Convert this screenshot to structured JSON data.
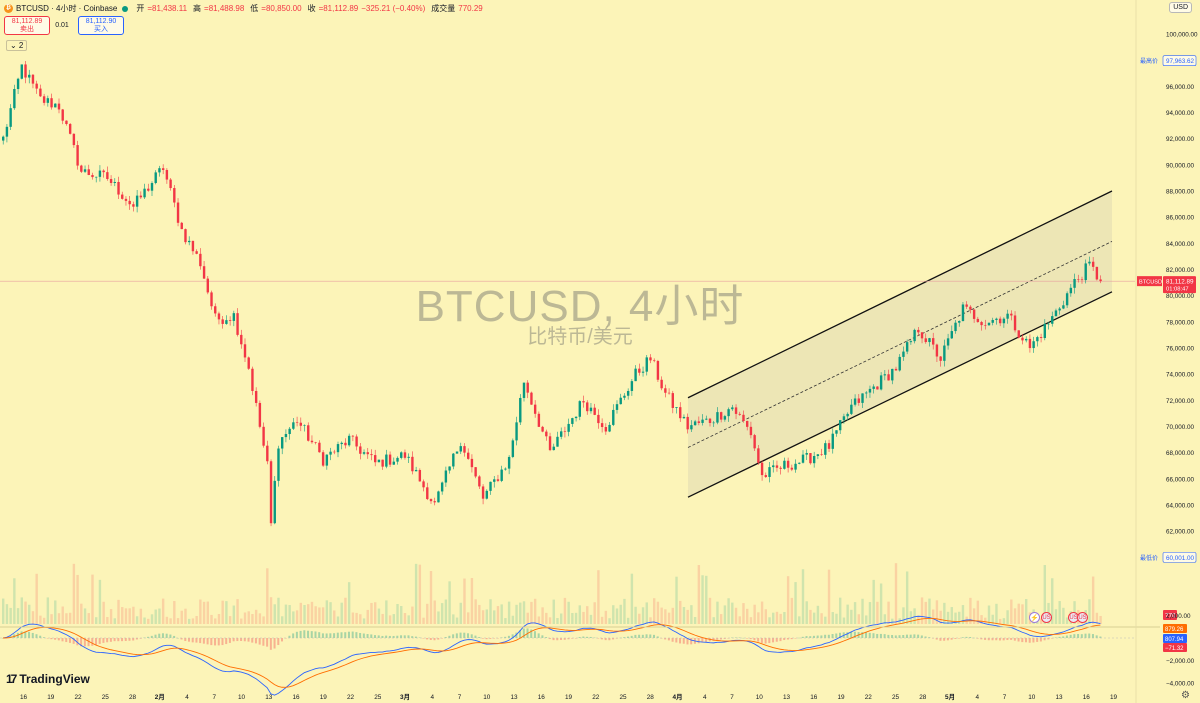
{
  "header": {
    "symbol": "BTCUSD · 4小时 · Coinbase",
    "coin_glyph": "₿",
    "ohlc": [
      {
        "label": "开",
        "value": "=81,438.11"
      },
      {
        "label": "高",
        "value": "=81,488.98"
      },
      {
        "label": "低",
        "value": "=80,850.00"
      },
      {
        "label": "收",
        "value": "=81,112.89"
      }
    ],
    "change": "−325.21 (−0.40%)",
    "volume_label": "成交量",
    "volume_value": "770.29"
  },
  "trade": {
    "sell_price": "81,112.89",
    "sell_label": "卖出",
    "spread": "0.01",
    "buy_price": "81,112.90",
    "buy_label": "买入"
  },
  "collapse_label": "⌄ 2",
  "currency": "USD",
  "watermark": {
    "title": "BTCUSD, 4小时",
    "subtitle": "比特币/美元"
  },
  "logo": {
    "mark": "17",
    "text": "TradingView"
  },
  "events": {
    "bolt": "⚡",
    "flag": "US"
  },
  "gear_icon": "⚙",
  "colors": {
    "up": "#089981",
    "down": "#f23645",
    "background": "#fcf4b8"
  },
  "chart_data": {
    "type": "candlestick",
    "symbol": "BTCUSD",
    "interval": "4小时",
    "price_axis": {
      "ticks": [
        "100,000.00",
        "98,000.00",
        "96,000.00",
        "94,000.00",
        "92,000.00",
        "90,000.00",
        "88,000.00",
        "86,000.00",
        "84,000.00",
        "82,000.00",
        "80,000.00",
        "78,000.00",
        "76,000.00",
        "74,000.00",
        "72,000.00",
        "70,000.00",
        "68,000.00",
        "66,000.00",
        "64,000.00",
        "62,000.00",
        "60,000.00"
      ],
      "range": [
        60000,
        100000
      ]
    },
    "price_labels": [
      {
        "label": "最高价",
        "value": "97,963.62",
        "price": 97963.62
      },
      {
        "label": "最低价",
        "value": "60,001.00",
        "price": 60001.0
      }
    ],
    "current_price": {
      "symbol": "BTCUSD",
      "value": "81,112.89",
      "countdown": "01:08:47",
      "price": 81112.89
    },
    "volume_badge": "770",
    "macd": {
      "ticks": [
        "2,000.00",
        "−2,000.00",
        "−4,000.00"
      ],
      "range": [
        -4000,
        2000
      ],
      "badges": [
        "879.26",
        "807.94",
        "−71.32"
      ]
    },
    "x_axis": {
      "labels": [
        "16",
        "19",
        "22",
        "25",
        "28",
        "2月",
        "4",
        "7",
        "10",
        "13",
        "16",
        "19",
        "22",
        "25",
        "3月",
        "4",
        "7",
        "10",
        "13",
        "16",
        "19",
        "22",
        "25",
        "28",
        "4月",
        "4",
        "7",
        "10",
        "13",
        "16",
        "19",
        "22",
        "25",
        "28",
        "5月",
        "4",
        "7",
        "10",
        "13",
        "16",
        "19"
      ],
      "bold": [
        "2月",
        "3月",
        "4月",
        "5月"
      ]
    },
    "path_waypoints": [
      {
        "t": 0,
        "p": 92000
      },
      {
        "t": 5,
        "p": 97500
      },
      {
        "t": 10,
        "p": 95000
      },
      {
        "t": 15,
        "p": 94500
      },
      {
        "t": 21,
        "p": 89500
      },
      {
        "t": 28,
        "p": 89000
      },
      {
        "t": 35,
        "p": 86800
      },
      {
        "t": 43,
        "p": 89800
      },
      {
        "t": 48,
        "p": 85000
      },
      {
        "t": 53,
        "p": 82500
      },
      {
        "t": 57,
        "p": 78200
      },
      {
        "t": 62,
        "p": 78500
      },
      {
        "t": 66,
        "p": 74500
      },
      {
        "t": 71,
        "p": 67000
      },
      {
        "t": 72,
        "p": 62500
      },
      {
        "t": 74,
        "p": 68800
      },
      {
        "t": 79,
        "p": 70500
      },
      {
        "t": 86,
        "p": 67500
      },
      {
        "t": 93,
        "p": 69000
      },
      {
        "t": 100,
        "p": 67200
      },
      {
        "t": 108,
        "p": 67800
      },
      {
        "t": 116,
        "p": 64000
      },
      {
        "t": 123,
        "p": 69000
      },
      {
        "t": 129,
        "p": 64500
      },
      {
        "t": 136,
        "p": 67500
      },
      {
        "t": 140,
        "p": 73500
      },
      {
        "t": 147,
        "p": 68000
      },
      {
        "t": 156,
        "p": 72000
      },
      {
        "t": 162,
        "p": 70000
      },
      {
        "t": 170,
        "p": 74000
      },
      {
        "t": 174,
        "p": 75200
      },
      {
        "t": 178,
        "p": 72500
      },
      {
        "t": 184,
        "p": 70000
      },
      {
        "t": 190,
        "p": 70500
      },
      {
        "t": 196,
        "p": 71500
      },
      {
        "t": 201,
        "p": 69500
      },
      {
        "t": 204,
        "p": 66200
      },
      {
        "t": 210,
        "p": 67000
      },
      {
        "t": 216,
        "p": 67500
      },
      {
        "t": 222,
        "p": 68500
      },
      {
        "t": 228,
        "p": 71500
      },
      {
        "t": 234,
        "p": 73000
      },
      {
        "t": 240,
        "p": 74500
      },
      {
        "t": 246,
        "p": 77500
      },
      {
        "t": 252,
        "p": 75200
      },
      {
        "t": 258,
        "p": 79000
      },
      {
        "t": 264,
        "p": 78000
      },
      {
        "t": 270,
        "p": 78500
      },
      {
        "t": 276,
        "p": 76000
      },
      {
        "t": 282,
        "p": 78300
      },
      {
        "t": 288,
        "p": 81000
      },
      {
        "t": 292,
        "p": 82300
      },
      {
        "t": 295,
        "p": 81112.89
      }
    ]
  }
}
